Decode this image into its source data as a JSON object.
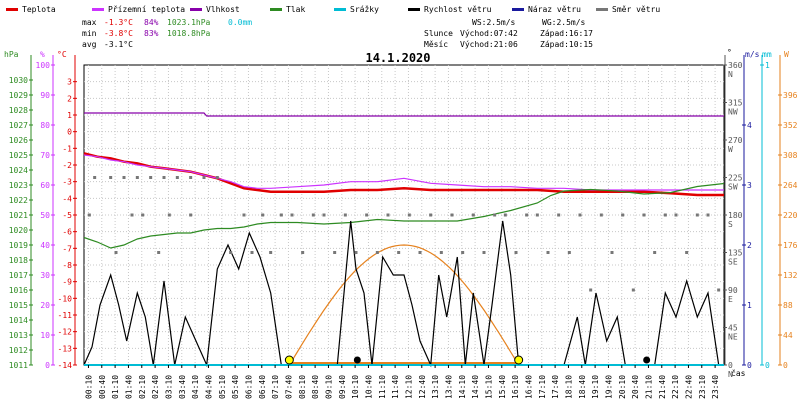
{
  "legend": [
    {
      "label": "Teplota",
      "color": "#e00000"
    },
    {
      "label": "Přízemní teplota",
      "color": "#cc33ff"
    },
    {
      "label": "Vlhkost",
      "color": "#8800aa"
    },
    {
      "label": "Tlak",
      "color": "#2e8b22"
    },
    {
      "label": "Srážky",
      "color": "#00bcd4"
    },
    {
      "label": "Rychlost větru",
      "color": "#000000"
    },
    {
      "label": "Náraz větru",
      "color": "#1a1a9e"
    },
    {
      "label": "Směr větru",
      "color": "#777777"
    }
  ],
  "stats": {
    "max": {
      "label": "max",
      "temp": "-1.3°C",
      "hum": "84%",
      "press": "1023.1hPa",
      "precip": "0.0mm"
    },
    "min": {
      "label": "min",
      "temp": "-3.8°C",
      "hum": "83%",
      "press": "1018.8hPa"
    },
    "avg": {
      "label": "avg",
      "temp": "-3.1°C"
    }
  },
  "wind_info": {
    "ws": "WS:2.5m/s",
    "wg": "WG:2.5m/s"
  },
  "sun": {
    "label": "Slunce",
    "rise": "Východ:07:42",
    "set": "Západ:16:17"
  },
  "moon": {
    "label": "Měsíc",
    "rise": "Východ:21:06",
    "set": "Západ:10:15"
  },
  "date": "14.1.2020",
  "units": {
    "hpa": "hPa",
    "pct": "%",
    "degc": "°C",
    "deg": "°",
    "ms": "m/s",
    "mm": "mm",
    "w": "W",
    "cas": "čas"
  },
  "colors": {
    "temp": "#e00000",
    "dew": "#cc33ff",
    "hum": "#8800aa",
    "press": "#2e8b22",
    "precip": "#00bcd4",
    "wind": "#000000",
    "gust": "#1a1a9e",
    "dir": "#777777",
    "solar": "#e6821e",
    "sun_marker": "#ffff00"
  },
  "chart_data": {
    "type": "line",
    "title": "14.1.2020",
    "x_ticks": [
      "00:10",
      "00:40",
      "01:10",
      "01:40",
      "02:10",
      "02:40",
      "03:10",
      "03:40",
      "04:10",
      "04:40",
      "05:10",
      "05:40",
      "06:10",
      "06:40",
      "07:10",
      "07:40",
      "08:10",
      "08:40",
      "09:10",
      "09:40",
      "10:10",
      "10:40",
      "11:10",
      "11:40",
      "12:10",
      "12:40",
      "13:10",
      "13:40",
      "14:10",
      "14:40",
      "15:10",
      "15:40",
      "16:10",
      "16:40",
      "17:10",
      "17:40",
      "18:10",
      "18:40",
      "19:10",
      "19:40",
      "20:10",
      "20:40",
      "21:10",
      "21:40",
      "22:10",
      "22:40",
      "23:10",
      "23:40"
    ],
    "xlim": [
      0,
      24
    ],
    "axes": {
      "hpa": {
        "ticks": [
          1011,
          1012,
          1013,
          1014,
          1015,
          1016,
          1017,
          1018,
          1019,
          1020,
          1021,
          1022,
          1023,
          1024,
          1025,
          1026,
          1027,
          1028,
          1029,
          1030
        ],
        "range": [
          1011,
          1031
        ]
      },
      "pct": {
        "ticks": [
          0,
          10,
          20,
          30,
          40,
          50,
          60,
          70,
          80,
          90,
          100
        ],
        "range": [
          0,
          100
        ]
      },
      "degc": {
        "ticks": [
          -14,
          -13,
          -12,
          -11,
          -10,
          -9,
          -8,
          -7,
          -6,
          -5,
          -4,
          -3,
          -2,
          -1,
          0,
          1,
          2,
          3
        ],
        "range": [
          -14,
          4
        ]
      },
      "deg": {
        "ticks": [
          0,
          45,
          90,
          135,
          180,
          225,
          270,
          315,
          360
        ],
        "labels": [
          "N",
          "NE",
          "E",
          "SE",
          "S",
          "SW",
          "W",
          "NW",
          "N"
        ],
        "range": [
          0,
          360
        ]
      },
      "ms": {
        "ticks": [
          0,
          1,
          2,
          3,
          4
        ],
        "range": [
          0,
          5
        ]
      },
      "mm": {
        "ticks": [
          0,
          1
        ],
        "range": [
          0,
          1
        ]
      },
      "w": {
        "ticks": [
          0,
          44,
          88,
          132,
          176,
          220,
          264,
          308,
          352,
          396
        ],
        "range": [
          0,
          440
        ]
      }
    },
    "series": [
      {
        "name": "Teplota",
        "axis": "degc",
        "color": "#e00000",
        "points": [
          [
            0.0,
            -1.3
          ],
          [
            0.5,
            -1.5
          ],
          [
            1.0,
            -1.6
          ],
          [
            1.5,
            -1.8
          ],
          [
            2.0,
            -1.9
          ],
          [
            2.5,
            -2.1
          ],
          [
            3.0,
            -2.2
          ],
          [
            3.5,
            -2.3
          ],
          [
            4.0,
            -2.4
          ],
          [
            4.5,
            -2.6
          ],
          [
            5.0,
            -2.8
          ],
          [
            5.5,
            -3.1
          ],
          [
            6.0,
            -3.4
          ],
          [
            6.5,
            -3.5
          ],
          [
            7.0,
            -3.6
          ],
          [
            8.0,
            -3.6
          ],
          [
            9.0,
            -3.6
          ],
          [
            10.0,
            -3.5
          ],
          [
            11.0,
            -3.5
          ],
          [
            12.0,
            -3.4
          ],
          [
            13.0,
            -3.5
          ],
          [
            14.0,
            -3.5
          ],
          [
            15.0,
            -3.5
          ],
          [
            16.0,
            -3.5
          ],
          [
            17.0,
            -3.5
          ],
          [
            18.0,
            -3.6
          ],
          [
            19.0,
            -3.6
          ],
          [
            20.0,
            -3.6
          ],
          [
            21.0,
            -3.6
          ],
          [
            22.0,
            -3.7
          ],
          [
            23.0,
            -3.8
          ],
          [
            24.0,
            -3.8
          ]
        ]
      },
      {
        "name": "Přízemní teplota",
        "axis": "degc",
        "color": "#cc33ff",
        "points": [
          [
            0.0,
            -1.4
          ],
          [
            0.5,
            -1.5
          ],
          [
            1.0,
            -1.7
          ],
          [
            1.5,
            -1.8
          ],
          [
            2.0,
            -2.0
          ],
          [
            2.5,
            -2.1
          ],
          [
            3.0,
            -2.2
          ],
          [
            3.5,
            -2.3
          ],
          [
            4.0,
            -2.4
          ],
          [
            4.5,
            -2.6
          ],
          [
            5.0,
            -2.8
          ],
          [
            5.5,
            -3.0
          ],
          [
            6.0,
            -3.3
          ],
          [
            6.5,
            -3.4
          ],
          [
            7.0,
            -3.4
          ],
          [
            8.0,
            -3.3
          ],
          [
            9.0,
            -3.2
          ],
          [
            10.0,
            -3.0
          ],
          [
            11.0,
            -3.0
          ],
          [
            12.0,
            -2.8
          ],
          [
            13.0,
            -3.1
          ],
          [
            14.0,
            -3.2
          ],
          [
            15.0,
            -3.3
          ],
          [
            16.0,
            -3.3
          ],
          [
            17.0,
            -3.4
          ],
          [
            18.0,
            -3.4
          ],
          [
            19.0,
            -3.5
          ],
          [
            20.0,
            -3.5
          ],
          [
            21.0,
            -3.5
          ],
          [
            22.0,
            -3.5
          ],
          [
            23.0,
            -3.5
          ],
          [
            24.0,
            -3.5
          ]
        ]
      },
      {
        "name": "Vlhkost",
        "axis": "pct",
        "color": "#8800aa",
        "points": [
          [
            0.0,
            84
          ],
          [
            4.5,
            84
          ],
          [
            4.6,
            83
          ],
          [
            24.0,
            83
          ]
        ]
      },
      {
        "name": "Tlak",
        "axis": "hpa",
        "color": "#2e8b22",
        "points": [
          [
            0.0,
            1019.5
          ],
          [
            0.5,
            1019.2
          ],
          [
            1.0,
            1018.8
          ],
          [
            1.5,
            1019.0
          ],
          [
            2.0,
            1019.4
          ],
          [
            2.5,
            1019.6
          ],
          [
            3.0,
            1019.7
          ],
          [
            3.5,
            1019.8
          ],
          [
            4.0,
            1019.8
          ],
          [
            4.5,
            1020.0
          ],
          [
            5.0,
            1020.1
          ],
          [
            5.5,
            1020.1
          ],
          [
            6.0,
            1020.2
          ],
          [
            6.5,
            1020.4
          ],
          [
            7.0,
            1020.5
          ],
          [
            8.0,
            1020.5
          ],
          [
            9.0,
            1020.4
          ],
          [
            10.0,
            1020.5
          ],
          [
            11.0,
            1020.7
          ],
          [
            12.0,
            1020.6
          ],
          [
            13.0,
            1020.6
          ],
          [
            14.0,
            1020.6
          ],
          [
            15.0,
            1020.9
          ],
          [
            16.0,
            1021.3
          ],
          [
            17.0,
            1021.8
          ],
          [
            17.5,
            1022.3
          ],
          [
            18.0,
            1022.6
          ],
          [
            19.0,
            1022.7
          ],
          [
            20.0,
            1022.6
          ],
          [
            21.0,
            1022.4
          ],
          [
            22.0,
            1022.5
          ],
          [
            22.5,
            1022.7
          ],
          [
            23.0,
            1022.9
          ],
          [
            24.0,
            1023.1
          ]
        ]
      },
      {
        "name": "Rychlost větru",
        "axis": "ms",
        "color": "#000000",
        "points": [
          [
            0.0,
            0.0
          ],
          [
            0.3,
            0.3
          ],
          [
            0.6,
            1.0
          ],
          [
            1.0,
            1.5
          ],
          [
            1.3,
            1.0
          ],
          [
            1.6,
            0.4
          ],
          [
            2.0,
            1.2
          ],
          [
            2.3,
            0.8
          ],
          [
            2.6,
            0.0
          ],
          [
            3.0,
            1.4
          ],
          [
            3.4,
            0.0
          ],
          [
            3.8,
            0.8
          ],
          [
            4.2,
            0.4
          ],
          [
            4.6,
            0.0
          ],
          [
            5.0,
            1.6
          ],
          [
            5.4,
            2.0
          ],
          [
            5.8,
            1.6
          ],
          [
            6.2,
            2.2
          ],
          [
            6.6,
            1.8
          ],
          [
            7.0,
            1.2
          ],
          [
            7.4,
            0.0
          ],
          [
            8.0,
            0.0
          ],
          [
            9.0,
            0.0
          ],
          [
            9.5,
            0.0
          ],
          [
            10.0,
            2.4
          ],
          [
            10.2,
            1.6
          ],
          [
            10.5,
            1.2
          ],
          [
            10.8,
            0.0
          ],
          [
            11.2,
            1.8
          ],
          [
            11.6,
            1.5
          ],
          [
            12.0,
            1.5
          ],
          [
            12.3,
            1.0
          ],
          [
            12.6,
            0.4
          ],
          [
            13.0,
            0.0
          ],
          [
            13.3,
            1.5
          ],
          [
            13.6,
            0.8
          ],
          [
            14.0,
            1.8
          ],
          [
            14.3,
            0.0
          ],
          [
            14.6,
            1.2
          ],
          [
            15.0,
            0.0
          ],
          [
            15.3,
            1.0
          ],
          [
            15.7,
            2.4
          ],
          [
            16.0,
            1.5
          ],
          [
            16.3,
            0.0
          ],
          [
            17.0,
            0.0
          ],
          [
            17.5,
            0.0
          ],
          [
            18.0,
            0.0
          ],
          [
            18.5,
            0.8
          ],
          [
            18.8,
            0.0
          ],
          [
            19.2,
            1.2
          ],
          [
            19.6,
            0.4
          ],
          [
            20.0,
            0.8
          ],
          [
            20.3,
            0.0
          ],
          [
            20.6,
            0.0
          ],
          [
            21.0,
            0.0
          ],
          [
            21.4,
            0.0
          ],
          [
            21.8,
            1.2
          ],
          [
            22.2,
            0.8
          ],
          [
            22.6,
            1.4
          ],
          [
            23.0,
            0.8
          ],
          [
            23.4,
            1.2
          ],
          [
            23.8,
            0.0
          ],
          [
            24.0,
            0.0
          ]
        ]
      },
      {
        "name": "Směr větru",
        "axis": "deg",
        "color": "#777777",
        "points": [
          [
            0.4,
            225
          ],
          [
            1.0,
            225
          ],
          [
            1.5,
            225
          ],
          [
            2.0,
            225
          ],
          [
            2.5,
            225
          ],
          [
            3.0,
            225
          ],
          [
            3.5,
            225
          ],
          [
            4.0,
            225
          ],
          [
            4.5,
            225
          ],
          [
            5.0,
            225
          ],
          [
            0.2,
            180
          ],
          [
            1.2,
            135
          ],
          [
            1.8,
            180
          ],
          [
            2.2,
            180
          ],
          [
            2.8,
            135
          ],
          [
            3.2,
            180
          ],
          [
            4.0,
            180
          ],
          [
            5.5,
            135
          ],
          [
            6.0,
            180
          ],
          [
            6.3,
            135
          ],
          [
            6.7,
            180
          ],
          [
            7.0,
            135
          ],
          [
            7.4,
            180
          ],
          [
            7.8,
            180
          ],
          [
            8.2,
            135
          ],
          [
            8.6,
            180
          ],
          [
            9.0,
            180
          ],
          [
            9.4,
            135
          ],
          [
            9.8,
            180
          ],
          [
            10.2,
            135
          ],
          [
            10.6,
            180
          ],
          [
            11.0,
            135
          ],
          [
            11.4,
            180
          ],
          [
            11.8,
            135
          ],
          [
            12.2,
            180
          ],
          [
            12.6,
            135
          ],
          [
            13.0,
            180
          ],
          [
            13.4,
            135
          ],
          [
            13.8,
            180
          ],
          [
            14.2,
            135
          ],
          [
            14.6,
            180
          ],
          [
            15.0,
            135
          ],
          [
            15.4,
            180
          ],
          [
            15.8,
            180
          ],
          [
            16.2,
            135
          ],
          [
            16.6,
            180
          ],
          [
            17.0,
            180
          ],
          [
            17.4,
            135
          ],
          [
            17.8,
            180
          ],
          [
            18.2,
            135
          ],
          [
            18.6,
            180
          ],
          [
            19.0,
            90
          ],
          [
            19.4,
            180
          ],
          [
            19.8,
            135
          ],
          [
            20.2,
            180
          ],
          [
            20.6,
            90
          ],
          [
            21.0,
            180
          ],
          [
            21.4,
            135
          ],
          [
            21.8,
            180
          ],
          [
            22.2,
            180
          ],
          [
            22.6,
            135
          ],
          [
            23.0,
            180
          ],
          [
            23.4,
            180
          ],
          [
            23.8,
            90
          ]
        ]
      },
      {
        "name": "Srážky",
        "axis": "mm",
        "color": "#00bcd4",
        "points": [
          [
            0.0,
            0
          ],
          [
            24.0,
            0
          ]
        ]
      }
    ],
    "solar_curve": {
      "axis": "w",
      "peak": 176,
      "start": 7.7,
      "end": 16.3,
      "peak_time": 12.0
    },
    "markers": [
      {
        "type": "sunrise",
        "x": 7.7
      },
      {
        "type": "sunset",
        "x": 16.3
      },
      {
        "type": "moonset",
        "x": 10.25
      },
      {
        "type": "moonrise",
        "x": 21.1
      }
    ],
    "grid": true
  }
}
